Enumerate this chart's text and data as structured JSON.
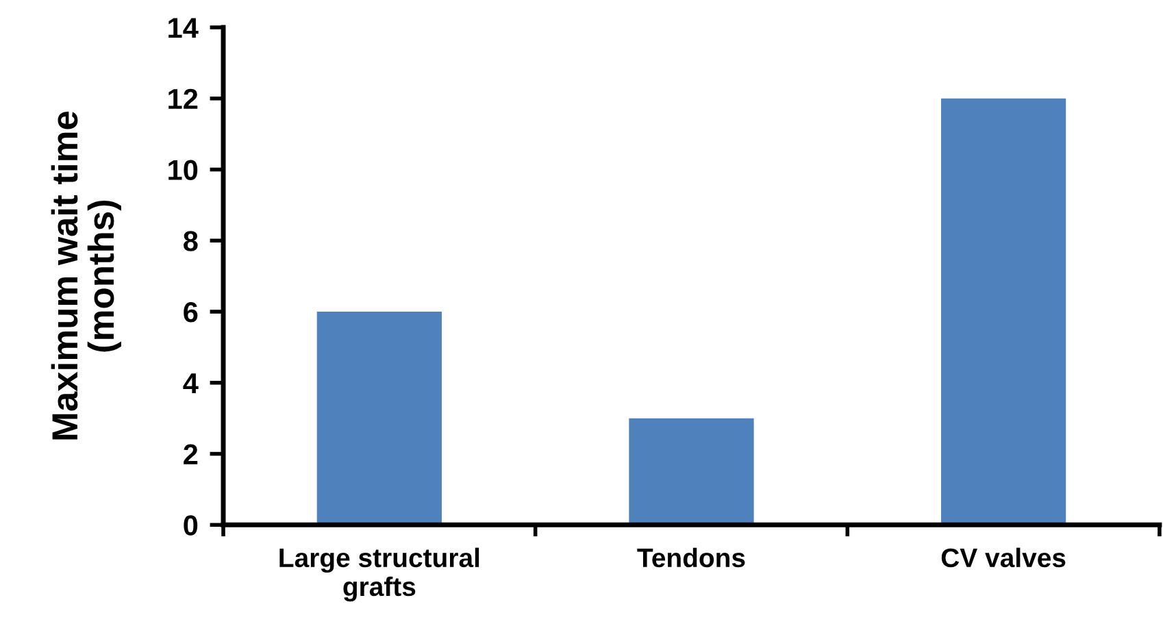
{
  "chart_data": {
    "type": "bar",
    "ylabel": "Maximum wait time\n(months)",
    "categories": [
      "Large structural\ngrafts",
      "Tendons",
      "CV valves"
    ],
    "values": [
      6,
      3,
      12
    ],
    "color": "#4f81bd",
    "ylim": [
      0,
      14
    ],
    "yticks": [
      0,
      2,
      4,
      6,
      8,
      10,
      12,
      14
    ],
    "grid": false,
    "legend": false
  }
}
